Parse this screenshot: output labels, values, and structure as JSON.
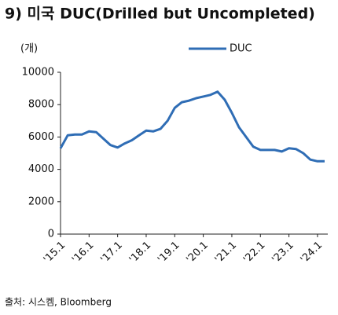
{
  "chart_data": {
    "type": "line",
    "title": "9) 미국 DUC(Drilled but Uncompleted)",
    "y_label": "(개)",
    "source": "출처: 시스켐, Bloomberg",
    "categories": [
      "'15.1",
      null,
      null,
      null,
      "'16.1",
      null,
      null,
      null,
      "'17.1",
      null,
      null,
      null,
      "'18.1",
      null,
      null,
      null,
      "'19.1",
      null,
      null,
      null,
      "'20.1",
      null,
      null,
      null,
      "'21.1",
      null,
      null,
      null,
      "'22.1",
      null,
      null,
      null,
      "'23.1",
      null,
      null,
      null,
      "'24.1",
      null
    ],
    "series": [
      {
        "name": "DUC",
        "color": "#2f6db5",
        "values": [
          5300,
          6100,
          6150,
          6150,
          6350,
          6300,
          5900,
          5500,
          5350,
          5600,
          5800,
          6100,
          6400,
          6350,
          6500,
          7000,
          7800,
          8150,
          8250,
          8400,
          8500,
          8600,
          8800,
          8300,
          7500,
          6600,
          6000,
          5400,
          5200,
          5200,
          5200,
          5100,
          5300,
          5250,
          5000,
          4600,
          4500,
          4500
        ]
      }
    ],
    "ylim": [
      0,
      10000
    ],
    "yticks": [
      0,
      2000,
      4000,
      6000,
      8000,
      10000
    ],
    "legend": "top-right",
    "grid": false
  }
}
